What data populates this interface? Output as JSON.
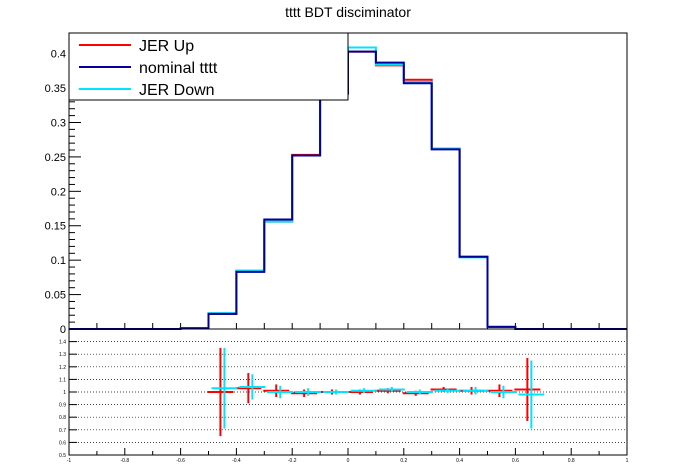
{
  "chart_data": [
    {
      "type": "histogram-step",
      "title": "tttt BDT disciminator",
      "xlim": [
        -1,
        1
      ],
      "ylim": [
        0,
        0.43
      ],
      "bin_edges": [
        -1,
        -0.9,
        -0.8,
        -0.7,
        -0.6,
        -0.5,
        -0.4,
        -0.3,
        -0.2,
        -0.1,
        0,
        0.1,
        0.2,
        0.3,
        0.4,
        0.5,
        0.6,
        0.7,
        0.8,
        0.9,
        1
      ],
      "y_ticks": [
        0,
        0.05,
        0.1,
        0.15,
        0.2,
        0.25,
        0.3,
        0.35,
        0.4
      ],
      "y_tick_labels": [
        "0",
        "0.05",
        "0.1",
        "0.15",
        "0.2",
        "0.25",
        "0.3",
        "0.35",
        "0.4"
      ],
      "series": [
        {
          "name": "JER Up",
          "color": "#ff0000",
          "values": [
            0,
            0,
            0,
            0,
            0.001,
            0.022,
            0.085,
            0.156,
            0.253,
            0.343,
            0.403,
            0.383,
            0.362,
            0.262,
            0.105,
            0.003,
            0,
            0,
            0,
            0
          ]
        },
        {
          "name": "nominal tttt",
          "color": "#000099",
          "values": [
            0,
            0,
            0,
            0,
            0.001,
            0.022,
            0.083,
            0.159,
            0.252,
            0.342,
            0.403,
            0.387,
            0.357,
            0.261,
            0.105,
            0.003,
            0,
            0,
            0,
            0
          ]
        },
        {
          "name": "JER Down",
          "color": "#00e5ff",
          "values": [
            0,
            0,
            0,
            0,
            0.001,
            0.023,
            0.085,
            0.156,
            0.252,
            0.345,
            0.409,
            0.384,
            0.359,
            0.262,
            0.104,
            0.003,
            0,
            0,
            0,
            0
          ]
        }
      ],
      "legend_position": "top-left"
    },
    {
      "type": "ratio-errorbar",
      "xlim": [
        -1,
        1
      ],
      "ylim": [
        0.5,
        1.5
      ],
      "x_ticks": [
        -1,
        -0.8,
        -0.6,
        -0.4,
        -0.2,
        0,
        0.2,
        0.4,
        0.6,
        0.8,
        1
      ],
      "x_tick_labels": [
        "-1",
        "-0.8",
        "-0.6",
        "-0.4",
        "-0.2",
        "0",
        "0.2",
        "0.4",
        "0.6",
        "0.8",
        "1"
      ],
      "y_ticks": [
        0.5,
        0.6,
        0.7,
        0.8,
        0.9,
        1,
        1.1,
        1.2,
        1.3,
        1.4
      ],
      "y_tick_labels": [
        "0.5",
        "0.6",
        "0.7",
        "0.8",
        "0.9",
        "1",
        "1.1",
        "1.2",
        "1.3",
        "1.4"
      ],
      "grid": "horizontal dotted",
      "bins_center": [
        -0.45,
        -0.35,
        -0.25,
        -0.15,
        -0.05,
        0.05,
        0.15,
        0.25,
        0.35,
        0.45,
        0.55,
        0.65
      ],
      "series": [
        {
          "name": "JER Up",
          "color": "#ff0000",
          "values": [
            1.0,
            1.03,
            1.01,
            0.99,
            1.0,
            1.0,
            1.01,
            0.99,
            1.02,
            1.01,
            1.01,
            1.02
          ],
          "errors": [
            0.35,
            0.12,
            0.05,
            0.03,
            0.02,
            0.02,
            0.02,
            0.02,
            0.02,
            0.03,
            0.05,
            0.25
          ]
        },
        {
          "name": "JER Down",
          "color": "#00e5ff",
          "values": [
            1.03,
            1.04,
            1.0,
            1.0,
            1.0,
            1.01,
            1.02,
            1.0,
            1.01,
            1.01,
            1.0,
            0.98
          ],
          "errors": [
            0.32,
            0.1,
            0.05,
            0.03,
            0.02,
            0.02,
            0.02,
            0.02,
            0.02,
            0.03,
            0.05,
            0.27
          ]
        }
      ]
    }
  ]
}
